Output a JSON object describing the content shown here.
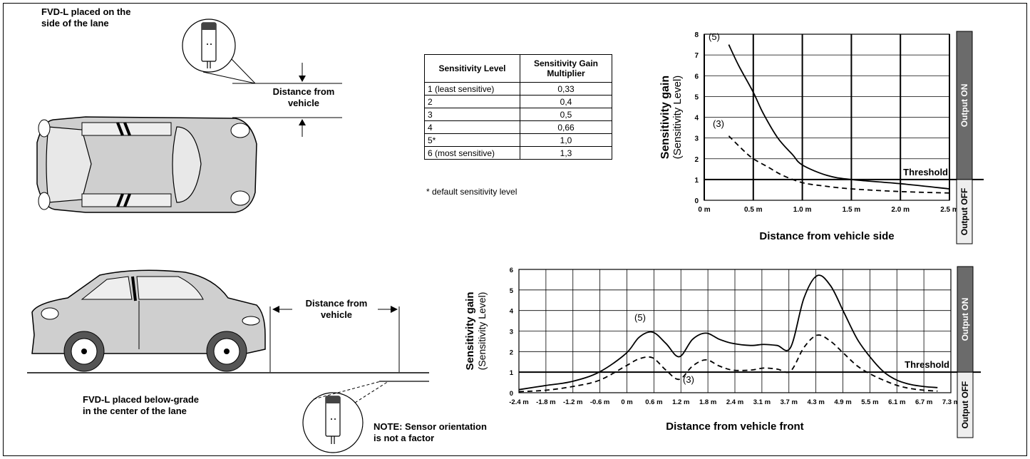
{
  "top_left": {
    "placement_label_line1": "FVD-L placed on the",
    "placement_label_line2": "side of the lane",
    "distance_label_line1": "Distance from",
    "distance_label_line2": "vehicle"
  },
  "table": {
    "headers": [
      "Sensitivity Level",
      "Sensitivity Gain Multiplier"
    ],
    "rows": [
      [
        "1 (least sensitive)",
        "0,33"
      ],
      [
        "2",
        "0,4"
      ],
      [
        "3",
        "0,5"
      ],
      [
        "4",
        "0,66"
      ],
      [
        "5*",
        "1,0"
      ],
      [
        "6 (most sensitive)",
        "1,3"
      ]
    ],
    "footnote": "* default sensitivity level"
  },
  "bottom_left": {
    "distance_label_line1": "Distance from",
    "distance_label_line2": "vehicle",
    "placement_label_line1": "FVD-L placed below-grade",
    "placement_label_line2": "in the center of the lane",
    "note_line1": "NOTE: Sensor orientation",
    "note_line2": "is not a factor"
  },
  "chart_data": [
    {
      "type": "line",
      "ylabel": "Sensitivity gain",
      "ylabel2": "(Sensitivity Level)",
      "xlabel": "Distance from vehicle side",
      "x_ticks": [
        "0 m",
        "0.5 m",
        "1.0 m",
        "1.5 m",
        "2.0 m",
        "2.5 m"
      ],
      "y_ticks": [
        "0",
        "1",
        "2",
        "3",
        "4",
        "5",
        "6",
        "7",
        "8"
      ],
      "xlim": [
        0,
        2.5
      ],
      "ylim": [
        0,
        8
      ],
      "threshold": 1,
      "threshold_label": "Threshold",
      "output_on_label": "Output ON",
      "output_off_label": "Output OFF",
      "series": [
        {
          "name": "(5)",
          "style": "solid",
          "x": [
            0.25,
            0.35,
            0.5,
            0.6,
            0.75,
            0.9,
            1.0,
            1.25,
            1.5,
            2.0,
            2.5
          ],
          "y": [
            7.5,
            6.5,
            5.2,
            4.2,
            3.0,
            2.2,
            1.7,
            1.2,
            1.0,
            0.8,
            0.55
          ]
        },
        {
          "name": "(3)",
          "style": "dashed",
          "x": [
            0.25,
            0.4,
            0.5,
            0.65,
            0.8,
            1.0,
            1.2,
            1.5,
            2.0,
            2.5
          ],
          "y": [
            3.1,
            2.4,
            2.0,
            1.6,
            1.2,
            0.85,
            0.7,
            0.55,
            0.42,
            0.35
          ]
        }
      ]
    },
    {
      "type": "line",
      "ylabel": "Sensitivity gain",
      "ylabel2": "(Sensitivity Level)",
      "xlabel": "Distance from vehicle front",
      "x_ticks": [
        "-2.4 m",
        "-1.8 m",
        "-1.2 m",
        "-0.6 m",
        "0 m",
        "0.6 m",
        "1.2 m",
        "1.8 m",
        "2.4 m",
        "3.1 m",
        "3.7 m",
        "4.3 m",
        "4.9 m",
        "5.5 m",
        "6.1 m",
        "6.7 m",
        "7.3 m"
      ],
      "y_ticks": [
        "0",
        "1",
        "2",
        "3",
        "4",
        "5",
        "6"
      ],
      "xlim": [
        -2.4,
        7.3
      ],
      "ylim": [
        0,
        6
      ],
      "threshold": 1,
      "threshold_label": "Threshold",
      "output_on_label": "Output ON",
      "output_off_label": "Output OFF",
      "series": [
        {
          "name": "(5)",
          "style": "solid",
          "x": [
            -2.4,
            -1.8,
            -1.2,
            -0.6,
            0,
            0.3,
            0.6,
            0.9,
            1.2,
            1.5,
            1.8,
            2.1,
            2.4,
            2.8,
            3.1,
            3.4,
            3.7,
            4.0,
            4.3,
            4.6,
            4.9,
            5.2,
            5.5,
            5.8,
            6.1,
            6.4,
            6.7,
            7.0
          ],
          "y": [
            0.15,
            0.35,
            0.55,
            1.0,
            1.9,
            2.7,
            2.95,
            2.4,
            1.75,
            2.6,
            2.9,
            2.6,
            2.4,
            2.3,
            2.35,
            2.3,
            2.2,
            4.6,
            5.7,
            5.2,
            3.9,
            2.6,
            1.7,
            1.0,
            0.6,
            0.4,
            0.3,
            0.25
          ]
        },
        {
          "name": "(3)",
          "style": "dashed",
          "x": [
            -2.4,
            -1.8,
            -1.2,
            -0.6,
            0,
            0.3,
            0.6,
            0.9,
            1.2,
            1.5,
            1.8,
            2.1,
            2.4,
            2.8,
            3.1,
            3.4,
            3.7,
            4.0,
            4.3,
            4.6,
            4.9,
            5.2,
            5.5,
            5.8,
            6.1,
            6.4,
            6.7,
            7.0
          ],
          "y": [
            0.05,
            0.12,
            0.3,
            0.6,
            1.3,
            1.65,
            1.7,
            1.1,
            0.65,
            1.3,
            1.6,
            1.3,
            1.1,
            1.1,
            1.2,
            1.15,
            1.05,
            2.2,
            2.8,
            2.5,
            1.9,
            1.3,
            0.9,
            0.6,
            0.35,
            0.2,
            0.12,
            0.08
          ]
        }
      ]
    }
  ]
}
